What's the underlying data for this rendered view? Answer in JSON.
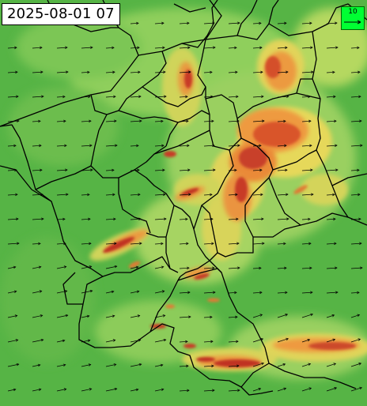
{
  "timestamp": "2025-08-01 07",
  "legend": {
    "reference_value": "10",
    "arrow_icon": "wind-arrow-icon"
  },
  "colors": {
    "background_green": "#4caf3f",
    "light_green": "#7fc95a",
    "yellow_green": "#c8dc5a",
    "yellow": "#f0dc5a",
    "orange": "#f0a040",
    "red_orange": "#e0602a",
    "dark_red": "#b81e1e",
    "border": "#000000",
    "legend_green": "#00ff33"
  }
}
